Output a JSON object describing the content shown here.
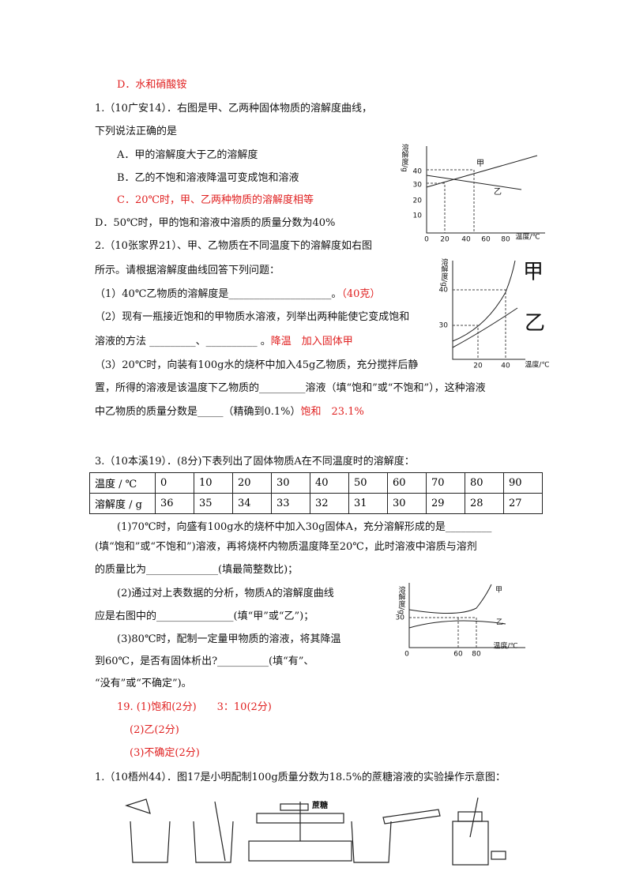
{
  "lines": [
    {
      "text": "D．水和硝酸铵"
    },
    {
      "text": "1.（10广安14）．右图是甲、乙两种固体物质的溶解度曲线，"
    },
    {
      "text": "下列说法正确的是"
    },
    {
      "text": "A．甲的溶解度大于乙的溶解度"
    },
    {
      "text": "B．乙的不饱和溶液降温可变成饱和溶液"
    },
    {
      "text": "C．20℃时，甲、乙两种物质的溶解度相等"
    },
    {
      "text": "D．50℃时，甲的饱和溶液中溶质的质量分数为40%"
    },
    {
      "text": "2.（10张家界21）、甲、乙物质在不同温度下的溶解度如右图"
    },
    {
      "text": "所示。请根据溶解度曲线回答下列问题："
    },
    {
      "text": "（1）40℃乙物质的溶解度是____________________。",
      "answer": "（40克）"
    },
    {
      "text": "（2）现有一瓶接近饱和的甲物质水溶液，列举出两种能使它变成饱和"
    },
    {
      "text": "溶液的方法 _________、__________ 。",
      "answer": "降温　加入固体甲"
    },
    {
      "text": "（3）20℃时，向装有100g水的烧杯中加入45g乙物质，充分搅拌后静"
    },
    {
      "text": "置，所得的溶液是该温度下乙物质的_________溶液（填“饱和”或“不饱和”），这种溶液"
    },
    {
      "text": "中乙物质的质量分数是_____（精确到0.1%）",
      "answer": "饱和　23.1%"
    },
    {
      "text": "3.（10本溪19）．(8分)下表列出了固体物质A在不同温度时的溶解度："
    },
    {
      "text": "(1)70℃时，向盛有100g水的烧杯中加入30g固体A，充分溶解形成的是_________"
    },
    {
      "text": "(填“饱和”或“不饱和”)溶液，再将烧杯内物质温度降至20℃，此时溶液中溶质与溶剂"
    },
    {
      "text": "的质量比为______________(填最简整数比)；"
    },
    {
      "text": "(2)通过对上表数据的分析，物质A的溶解度曲线"
    },
    {
      "text": "应是右图中的_______________(填“甲”或“乙”)；"
    },
    {
      "text": "(3)80℃时，配制一定量甲物质的溶液，将其降温"
    },
    {
      "text": "到60℃，是否有固体析出?__________(填“有”、"
    },
    {
      "text": "“没有”或“不确定”)。"
    },
    {
      "text": "19.  (1)饱和(2分)　　3：10(2分)"
    },
    {
      "text": "(2)乙(2分)"
    },
    {
      "text": "(3)不确定(2分)"
    },
    {
      "text": "1.（10梧州44）．图17是小明配制100g质量分数为18.5%的蔗糖溶液的实验操作示意图："
    }
  ],
  "table": {
    "rows": [
      [
        "温度 / ℃",
        0,
        10,
        20,
        30,
        40,
        50,
        60,
        70,
        80,
        90
      ],
      [
        "溶解度 / g",
        36,
        35,
        34,
        33,
        32,
        31,
        30,
        29,
        28,
        27
      ]
    ]
  },
  "graphs": [
    {
      "y_label": "溶解度/g",
      "x_label": "温度/℃",
      "yticks": [
        40,
        30,
        20,
        10
      ],
      "xticks": [
        0,
        20,
        40,
        60,
        80
      ],
      "curves": [
        "甲",
        "乙"
      ]
    },
    {
      "y_label": "溶解度/g",
      "x_label": "温度/℃",
      "yticks": [
        40,
        30
      ],
      "xticks": [
        20,
        40
      ],
      "curves": [
        "甲",
        "乙"
      ]
    },
    {
      "y_label": "溶解度/g",
      "x_label": "温度/℃",
      "yticks": [
        30
      ],
      "xticks": [
        0,
        60,
        80
      ],
      "curves": [
        "甲",
        "乙"
      ]
    }
  ],
  "figure": {
    "label": "蔗糖"
  }
}
